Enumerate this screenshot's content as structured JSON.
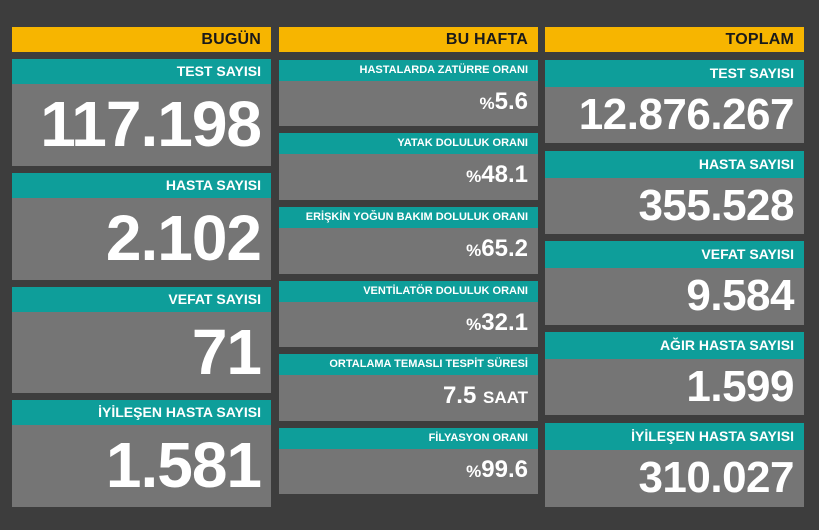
{
  "columns": {
    "today": {
      "header": "BUGÜN",
      "cards": [
        {
          "label": "TEST SAYISI",
          "value": "117.198"
        },
        {
          "label": "HASTA SAYISI",
          "value": "2.102"
        },
        {
          "label": "VEFAT SAYISI",
          "value": "71"
        },
        {
          "label": "İYİLEŞEN HASTA SAYISI",
          "value": "1.581"
        }
      ]
    },
    "week": {
      "header": "BU HAFTA",
      "percent_sign": "%",
      "cards": [
        {
          "label": "HASTALARDA ZATÜRRE ORANI",
          "value": "5.6"
        },
        {
          "label": "YATAK DOLULUK ORANI",
          "value": "48.1"
        },
        {
          "label": "ERİŞKİN YOĞUN BAKIM DOLULUK ORANI",
          "value": "65.2"
        },
        {
          "label": "VENTİLATÖR DOLULUK ORANI",
          "value": "32.1"
        },
        {
          "label": "ORTALAMA TEMASLI TESPİT SÜRESİ",
          "value": "7.5",
          "unit": "SAAT"
        },
        {
          "label": "FİLYASYON ORANI",
          "value": "99.6"
        }
      ]
    },
    "total": {
      "header": "TOPLAM",
      "cards": [
        {
          "label": "TEST SAYISI",
          "value": "12.876.267"
        },
        {
          "label": "HASTA SAYISI",
          "value": "355.528"
        },
        {
          "label": "VEFAT SAYISI",
          "value": "9.584"
        },
        {
          "label": "AĞIR HASTA SAYISI",
          "value": "1.599"
        },
        {
          "label": "İYİLEŞEN HASTA SAYISI",
          "value": "310.027"
        }
      ]
    }
  },
  "colors": {
    "background": "#3d3d3d",
    "header": "#f7b500",
    "label": "#0e9e9a",
    "card": "#757575",
    "text": "#ffffff"
  }
}
